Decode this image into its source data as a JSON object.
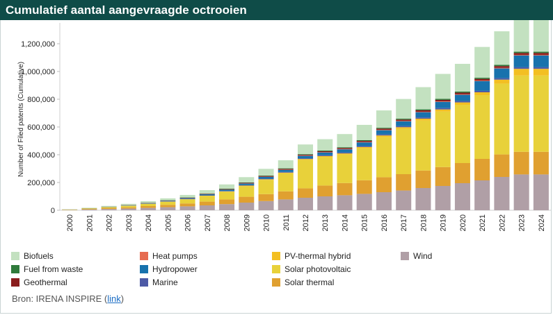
{
  "header": {
    "title": "Cumulatief aantal aangevraagde octrooien"
  },
  "source": {
    "prefix": "Bron: IRENA INSPIRE (",
    "link_label": "link",
    "suffix": ")"
  },
  "chart_data": {
    "type": "bar",
    "stacked": true,
    "title": "Cumulatief aantal aangevraagde octrooien",
    "xlabel": "",
    "ylabel": "Number of Filed patents (Cumulative)",
    "ylim": [
      0,
      1350000
    ],
    "yticks": [
      0,
      200000,
      400000,
      600000,
      800000,
      1000000,
      1200000
    ],
    "ytick_labels": [
      "0",
      "200,000",
      "400,000",
      "600,000",
      "800,000",
      "1,000,000",
      "1,200,000"
    ],
    "categories": [
      "2000",
      "2001",
      "2002",
      "2003",
      "2004",
      "2005",
      "2006",
      "2007",
      "2008",
      "2009",
      "2010",
      "2011",
      "2012",
      "2013",
      "2014",
      "2015",
      "2016",
      "2017",
      "2018",
      "2019",
      "2020",
      "2021",
      "2022",
      "2023",
      "2024"
    ],
    "series": [
      {
        "name": "Wind",
        "color": "#b09fa6",
        "values": [
          2000,
          5000,
          9000,
          12000,
          17000,
          22000,
          28000,
          35000,
          44000,
          55000,
          66000,
          78000,
          90000,
          100000,
          108000,
          118000,
          130000,
          142000,
          160000,
          175000,
          195000,
          215000,
          240000,
          258000,
          258000
        ]
      },
      {
        "name": "Solar thermal",
        "color": "#e0a030",
        "values": [
          1500,
          3500,
          6000,
          9000,
          13000,
          17000,
          21000,
          27000,
          34000,
          42000,
          50000,
          58000,
          68000,
          78000,
          88000,
          98000,
          108000,
          118000,
          126000,
          136000,
          145000,
          155000,
          162000,
          163000,
          163000
        ]
      },
      {
        "name": "Solar photovoltaic",
        "color": "#e8d13a",
        "values": [
          1500,
          4000,
          7000,
          11000,
          16000,
          22000,
          29000,
          41000,
          55000,
          77000,
          103000,
          130000,
          205000,
          205000,
          205000,
          230000,
          290000,
          326000,
          360000,
          400000,
          420000,
          460000,
          510000,
          550000,
          550000
        ]
      },
      {
        "name": "PV-thermal hybrid",
        "color": "#f3bf22",
        "values": [
          200,
          300,
          500,
          700,
          1000,
          1300,
          1700,
          2200,
          2800,
          3500,
          4300,
          5200,
          6300,
          7400,
          8500,
          9800,
          11000,
          12500,
          14000,
          15500,
          17000,
          20000,
          29000,
          48000,
          48000
        ]
      },
      {
        "name": "Marine",
        "color": "#4d5aa6",
        "values": [
          200,
          300,
          500,
          800,
          1100,
          1400,
          1800,
          2300,
          2800,
          3400,
          4000,
          4600,
          5200,
          5800,
          6400,
          7000,
          7600,
          8200,
          8800,
          9400,
          10000,
          10500,
          11000,
          11500,
          11500
        ]
      },
      {
        "name": "Hydropower",
        "color": "#1872ad",
        "values": [
          300,
          700,
          1400,
          2200,
          3100,
          4200,
          5600,
          7200,
          9000,
          11000,
          13000,
          15000,
          17000,
          20000,
          23000,
          26000,
          30000,
          34000,
          38000,
          45000,
          45000,
          70000,
          70000,
          85000,
          85000
        ]
      },
      {
        "name": "Heat pumps",
        "color": "#e66b50",
        "values": [
          100,
          200,
          300,
          400,
          500,
          600,
          800,
          1000,
          1200,
          1400,
          1600,
          1800,
          2000,
          2200,
          2400,
          2600,
          2800,
          3000,
          3200,
          3400,
          3600,
          3800,
          4000,
          4200,
          4200
        ]
      },
      {
        "name": "Geothermal",
        "color": "#8a1d1d",
        "values": [
          200,
          400,
          700,
          1000,
          1400,
          1800,
          2300,
          2800,
          3400,
          4000,
          4700,
          5400,
          6100,
          6800,
          7500,
          8200,
          8900,
          9600,
          10300,
          11000,
          11700,
          12400,
          13100,
          13800,
          13800
        ]
      },
      {
        "name": "Fuel from waste",
        "color": "#2f7a3b",
        "values": [
          200,
          400,
          700,
          1000,
          1300,
          1600,
          2000,
          2400,
          2800,
          3200,
          3600,
          4000,
          4400,
          4800,
          5200,
          5600,
          6000,
          6400,
          6800,
          7200,
          7600,
          8000,
          8400,
          8800,
          8800
        ]
      },
      {
        "name": "Biofuels",
        "color": "#c3e1c0",
        "values": [
          1200,
          3000,
          5200,
          8000,
          11000,
          14000,
          18000,
          24000,
          31000,
          38000,
          48000,
          58000,
          70000,
          82000,
          95000,
          110000,
          125000,
          142000,
          160000,
          180000,
          200000,
          222000,
          242000,
          242000,
          250000
        ]
      }
    ]
  },
  "legend": {
    "items": [
      {
        "label": "Biofuels",
        "color": "#c3e1c0"
      },
      {
        "label": "Fuel from waste",
        "color": "#2f7a3b"
      },
      {
        "label": "Geothermal",
        "color": "#8a1d1d"
      },
      {
        "label": "Heat pumps",
        "color": "#e66b50"
      },
      {
        "label": "Hydropower",
        "color": "#1872ad"
      },
      {
        "label": "Marine",
        "color": "#4d5aa6"
      },
      {
        "label": "PV-thermal hybrid",
        "color": "#f3bf22"
      },
      {
        "label": "Solar photovoltaic",
        "color": "#e8d13a"
      },
      {
        "label": "Solar thermal",
        "color": "#e0a030"
      },
      {
        "label": "Wind",
        "color": "#b09fa6"
      }
    ]
  }
}
